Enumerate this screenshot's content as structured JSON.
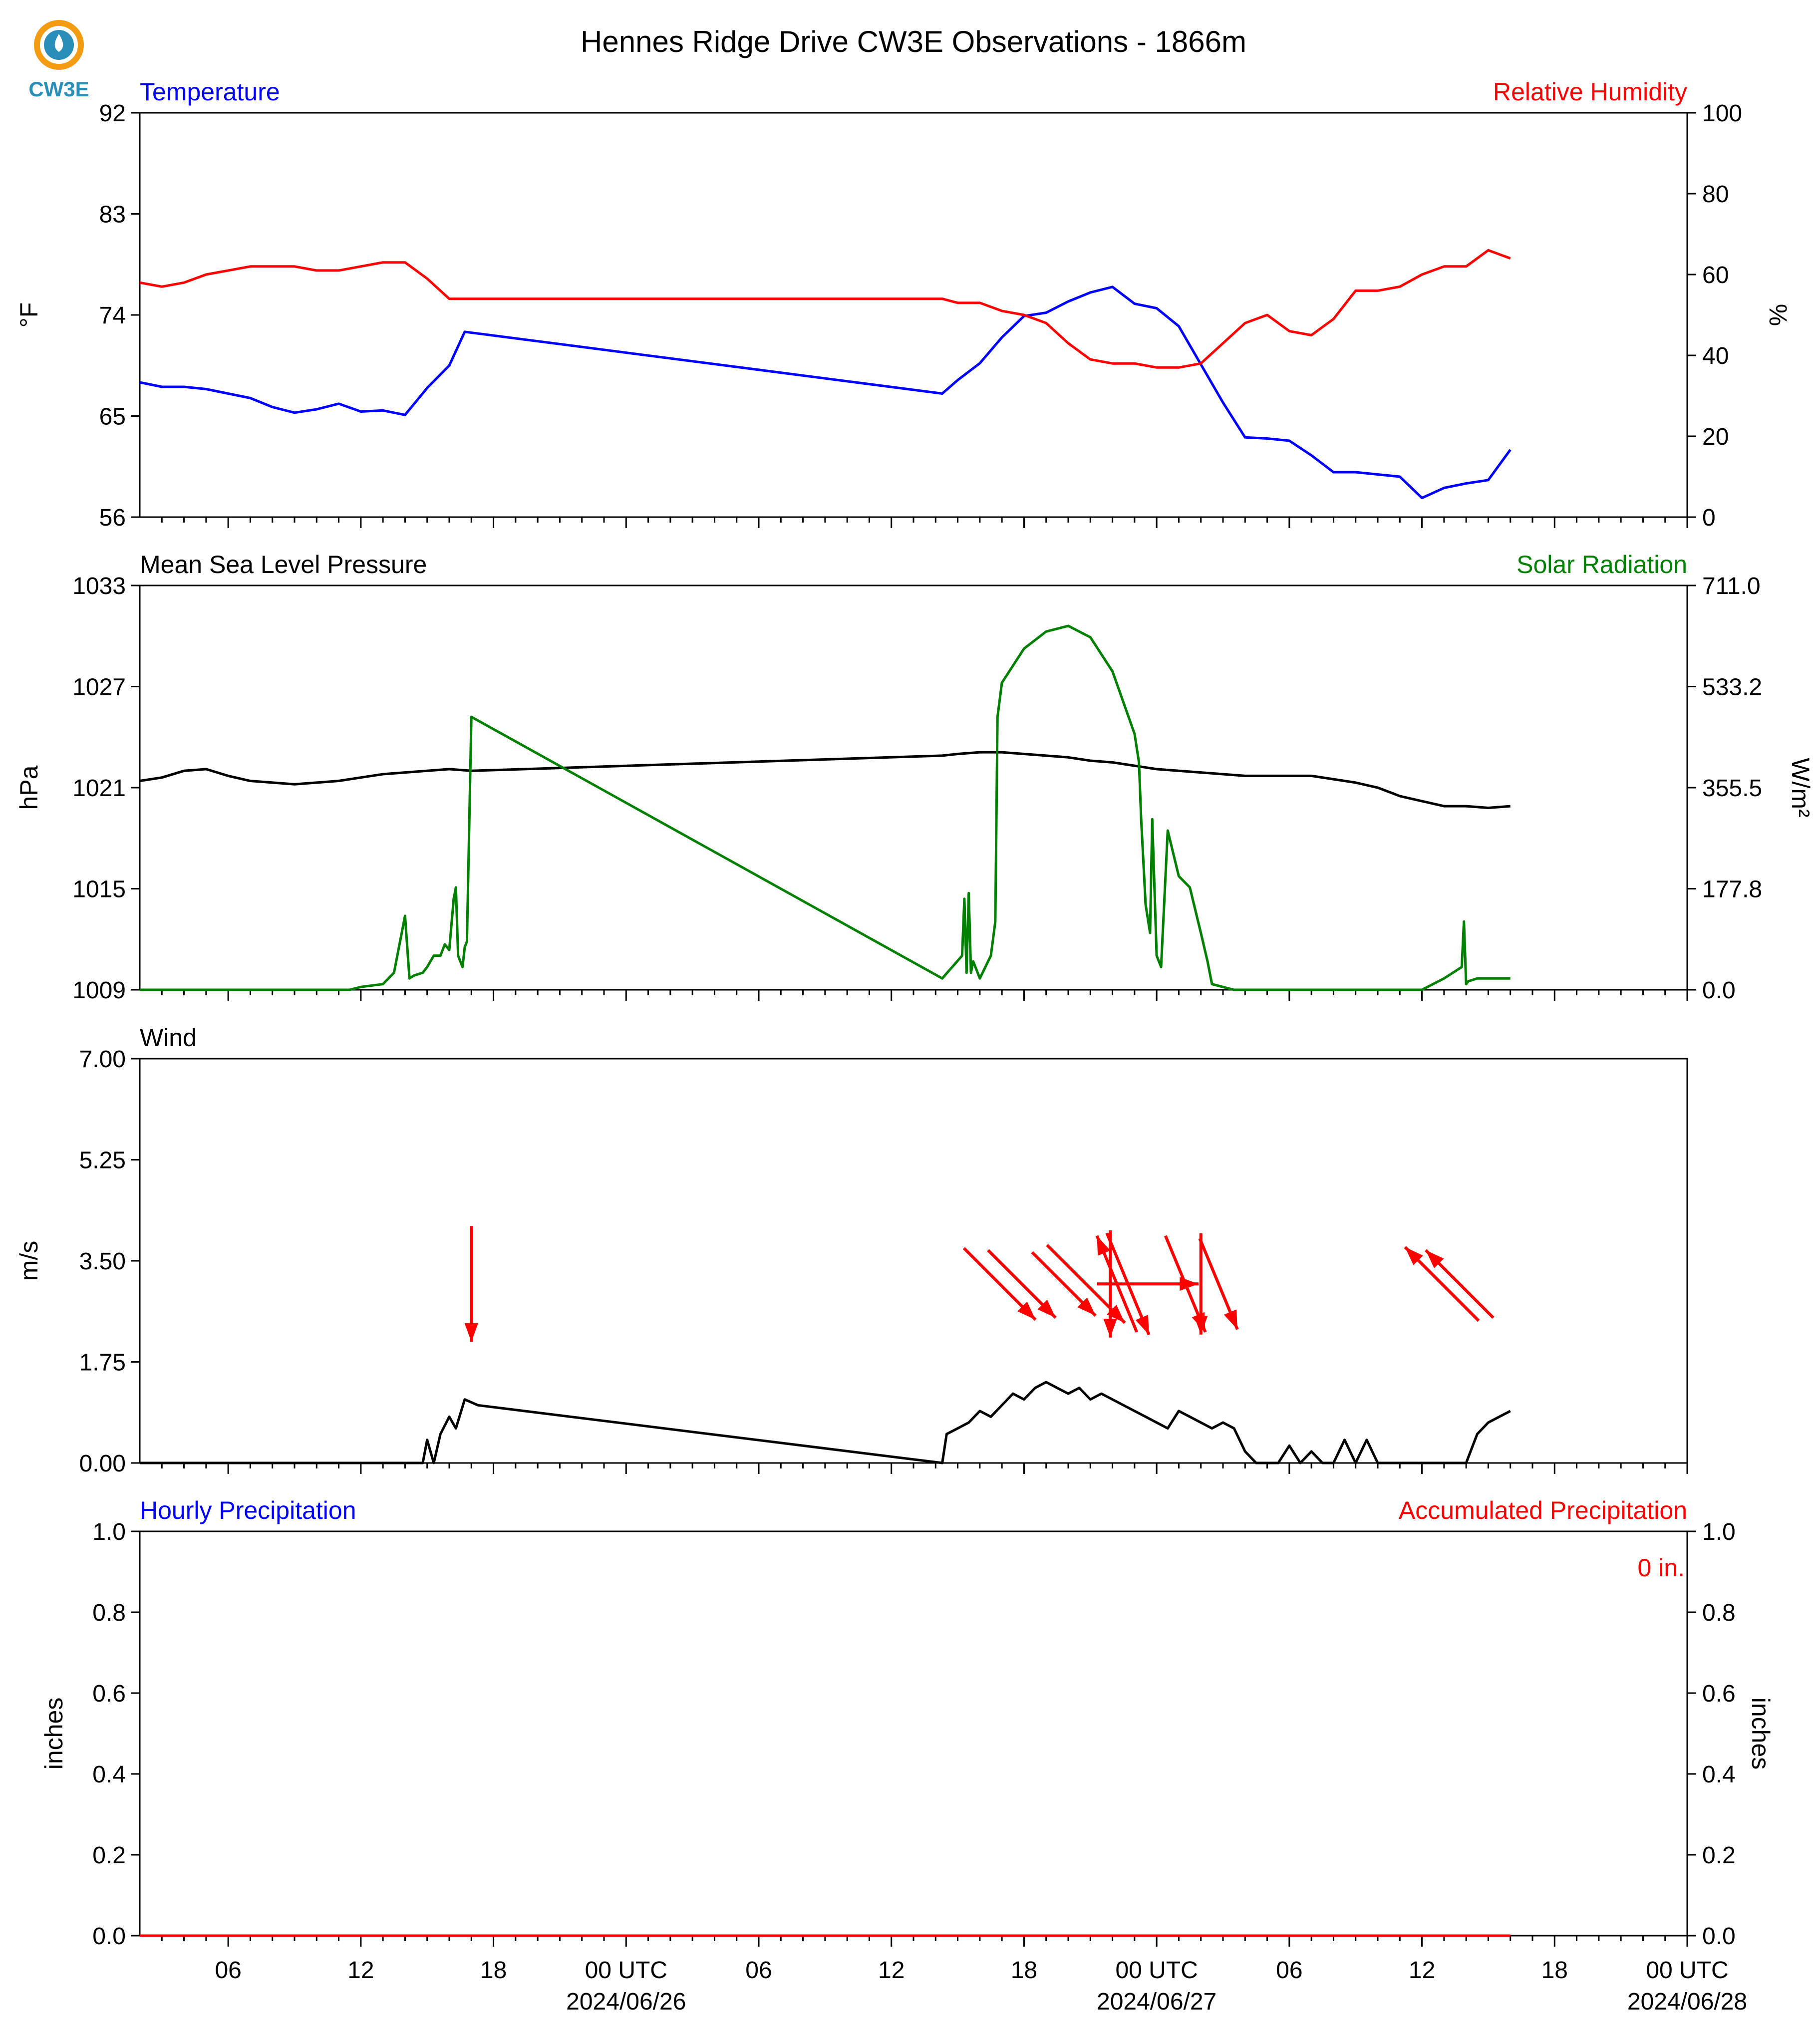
{
  "title": "Hennes Ridge Drive CW3E Observations - 1866m",
  "logo": {
    "text": "CW3E",
    "color": "#2a8fb8",
    "accent": "#f39c12"
  },
  "colors": {
    "blue": "#0000ff",
    "red": "#ff0000",
    "green": "#008000",
    "black": "#000000"
  },
  "x_axis": {
    "unit": "hours since 2024/06/25 00 UTC",
    "range": [
      2,
      72
    ],
    "hour_ticks": [
      {
        "h": 6,
        "label": "06"
      },
      {
        "h": 12,
        "label": "12"
      },
      {
        "h": 18,
        "label": "18"
      },
      {
        "h": 24,
        "label": "00 UTC"
      },
      {
        "h": 30,
        "label": "06"
      },
      {
        "h": 36,
        "label": "12"
      },
      {
        "h": 42,
        "label": "18"
      },
      {
        "h": 48,
        "label": "00 UTC"
      },
      {
        "h": 54,
        "label": "06"
      },
      {
        "h": 60,
        "label": "12"
      },
      {
        "h": 66,
        "label": "18"
      },
      {
        "h": 72,
        "label": "00 UTC"
      }
    ],
    "date_labels": [
      {
        "h": 24,
        "label": "2024/06/26"
      },
      {
        "h": 48,
        "label": "2024/06/27"
      },
      {
        "h": 72,
        "label": "2024/06/28"
      }
    ]
  },
  "panels": [
    {
      "left_title": "Temperature",
      "left_title_color": "#0000ff",
      "right_title": "Relative Humidity",
      "right_title_color": "#ff0000",
      "left_unit": "°F",
      "right_unit": "%",
      "left_ticks": [
        "56",
        "65",
        "74",
        "83",
        "92"
      ],
      "right_ticks": [
        "0",
        "20",
        "40",
        "60",
        "80",
        "100"
      ]
    },
    {
      "left_title": "Mean Sea Level Pressure",
      "left_title_color": "#000000",
      "right_title": "Solar Radiation",
      "right_title_color": "#008000",
      "left_unit": "hPa",
      "right_unit": "W/m²",
      "left_ticks": [
        "1009",
        "1015",
        "1021",
        "1027",
        "1033"
      ],
      "right_ticks": [
        "0.0",
        "177.8",
        "355.5",
        "533.2",
        "711.0"
      ]
    },
    {
      "left_title": "Wind",
      "left_title_color": "#000000",
      "right_title": "",
      "right_title_color": "#000000",
      "left_unit": "m/s",
      "right_unit": "",
      "left_ticks": [
        "0.00",
        "1.75",
        "3.50",
        "5.25",
        "7.00"
      ],
      "right_ticks": []
    },
    {
      "left_title": "Hourly Precipitation",
      "left_title_color": "#0000ff",
      "right_title": "Accumulated Precipitation",
      "right_title_color": "#ff0000",
      "left_unit": "inches",
      "right_unit": "inches",
      "left_ticks": [
        "0.0",
        "0.2",
        "0.4",
        "0.6",
        "0.8",
        "1.0"
      ],
      "right_ticks": [
        "0.0",
        "0.2",
        "0.4",
        "0.6",
        "0.8",
        "1.0"
      ],
      "annotation": "0 in."
    }
  ],
  "chart_data": [
    {
      "type": "line",
      "title": "Temperature / Relative Humidity",
      "x_unit": "hours since 2024/06/25 00 UTC",
      "series": [
        {
          "name": "Temperature",
          "axis": "left",
          "unit": "°F",
          "color": "#0000ff",
          "x": [
            2,
            3,
            4,
            5,
            6,
            7,
            8,
            9,
            10,
            11,
            12,
            13,
            14,
            15,
            16,
            16.7,
            17.5,
            38.3,
            39,
            40,
            41,
            42,
            43,
            44,
            45,
            46,
            47,
            48,
            49,
            50,
            51,
            52,
            53,
            54,
            55,
            56,
            57,
            58,
            59,
            60,
            61,
            62,
            63,
            64
          ],
          "y": [
            68,
            67.6,
            67.6,
            67.4,
            67,
            66.6,
            65.8,
            65.3,
            65.6,
            66.1,
            65.4,
            65.5,
            65.1,
            67.5,
            69.5,
            72.5,
            72.3,
            67,
            68.2,
            69.7,
            72,
            73.9,
            74.2,
            75.2,
            76,
            76.5,
            75,
            74.6,
            73,
            69.6,
            66.2,
            63.1,
            63,
            62.8,
            61.5,
            60,
            60,
            59.8,
            59.6,
            57.7,
            58.6,
            59,
            59.3,
            62
          ]
        },
        {
          "name": "Relative Humidity",
          "axis": "right",
          "unit": "%",
          "color": "#ff0000",
          "x": [
            2,
            3,
            4,
            5,
            6,
            7,
            8,
            9,
            10,
            11,
            12,
            13,
            14,
            15,
            16,
            16.7,
            17.5,
            38.3,
            39,
            40,
            41,
            42,
            43,
            44,
            45,
            46,
            47,
            48,
            49,
            50,
            51,
            52,
            53,
            54,
            55,
            56,
            57,
            58,
            59,
            60,
            61,
            62,
            63,
            64
          ],
          "y": [
            58,
            57,
            58,
            60,
            61,
            62,
            62,
            62,
            61,
            61,
            62,
            63,
            63,
            59,
            54,
            54,
            54,
            54,
            53,
            53,
            51,
            50,
            48,
            43,
            39,
            38,
            38,
            37,
            37,
            38,
            43,
            48,
            50,
            46,
            45,
            49,
            56,
            56,
            57,
            60,
            62,
            62,
            66,
            64
          ]
        }
      ],
      "ylim_left": [
        56,
        92
      ],
      "ylim_right": [
        0,
        100
      ]
    },
    {
      "type": "line",
      "title": "Mean Sea Level Pressure / Solar Radiation",
      "x_unit": "hours since 2024/06/25 00 UTC",
      "series": [
        {
          "name": "Mean Sea Level Pressure",
          "axis": "left",
          "unit": "hPa",
          "color": "#000000",
          "x": [
            2,
            3,
            4,
            5,
            6,
            7,
            8,
            9,
            10,
            11,
            12,
            13,
            14,
            15,
            16,
            17,
            38.3,
            39,
            40,
            41,
            42,
            43,
            44,
            45,
            46,
            47,
            48,
            49,
            50,
            51,
            52,
            53,
            54,
            55,
            56,
            57,
            58,
            59,
            60,
            61,
            62,
            63,
            64
          ],
          "y": [
            1021.4,
            1021.6,
            1022.0,
            1022.1,
            1021.7,
            1021.4,
            1021.3,
            1021.2,
            1021.3,
            1021.4,
            1021.6,
            1021.8,
            1021.9,
            1022.0,
            1022.1,
            1022.0,
            1022.9,
            1023.0,
            1023.1,
            1023.1,
            1023.0,
            1022.9,
            1022.8,
            1022.6,
            1022.5,
            1022.3,
            1022.1,
            1022.0,
            1021.9,
            1021.8,
            1021.7,
            1021.7,
            1021.7,
            1021.7,
            1021.5,
            1021.3,
            1021.0,
            1020.5,
            1020.2,
            1019.9,
            1019.9,
            1019.8,
            1019.9
          ]
        },
        {
          "name": "Solar Radiation",
          "axis": "right",
          "unit": "W/m²",
          "color": "#008000",
          "x": [
            2,
            11.5,
            12,
            13,
            13.5,
            14,
            14.2,
            14.4,
            14.8,
            15,
            15.3,
            15.6,
            15.8,
            16,
            16.2,
            16.3,
            16.4,
            16.6,
            16.7,
            16.8,
            17.0,
            38.3,
            39.2,
            39.3,
            39.4,
            39.5,
            39.6,
            39.7,
            40.0,
            40.5,
            40.7,
            40.8,
            41,
            42,
            43,
            44,
            45,
            46,
            47,
            47.2,
            47.3,
            47.5,
            47.7,
            47.8,
            48.0,
            48.2,
            48.5,
            49,
            49.5,
            50,
            50.3,
            50.5,
            51,
            51.5,
            52,
            60,
            61,
            61.8,
            61.9,
            62.0,
            62.1,
            62.5,
            63,
            64
          ],
          "y": [
            0,
            0,
            5,
            10,
            30,
            130,
            20,
            25,
            30,
            40,
            60,
            60,
            80,
            70,
            160,
            180,
            60,
            40,
            75,
            85,
            480,
            20,
            60,
            160,
            30,
            170,
            30,
            50,
            20,
            60,
            120,
            480,
            540,
            600,
            630,
            640,
            620,
            560,
            450,
            400,
            300,
            150,
            100,
            300,
            60,
            40,
            280,
            200,
            180,
            100,
            50,
            10,
            5,
            0,
            0,
            0,
            20,
            40,
            120,
            10,
            15,
            20,
            20,
            20
          ]
        }
      ],
      "ylim_left": [
        1009,
        1033
      ],
      "ylim_right": [
        0,
        711
      ]
    },
    {
      "type": "line",
      "title": "Wind",
      "x_unit": "hours since 2024/06/25 00 UTC",
      "series": [
        {
          "name": "Wind Speed",
          "axis": "left",
          "unit": "m/s",
          "color": "#000000",
          "x": [
            2,
            14.8,
            15,
            15.3,
            15.6,
            16,
            16.3,
            16.7,
            17.3,
            38.3,
            38.5,
            39,
            39.5,
            40,
            40.5,
            41,
            41.5,
            42,
            42.5,
            43,
            43.5,
            44,
            44.5,
            45,
            45.5,
            46,
            46.5,
            47,
            47.5,
            48,
            48.5,
            49,
            49.5,
            50,
            50.5,
            51,
            51.5,
            52,
            52.5,
            53,
            53.5,
            54,
            54.5,
            55,
            55.5,
            56,
            56.5,
            57,
            57.5,
            58,
            58.5,
            59,
            59.5,
            60,
            60.5,
            61,
            61.5,
            62,
            62.5,
            63,
            63.5,
            64
          ],
          "y": [
            0,
            0,
            0.4,
            0,
            0.5,
            0.8,
            0.6,
            1.1,
            1.0,
            0,
            0.5,
            0.6,
            0.7,
            0.9,
            0.8,
            1.0,
            1.2,
            1.1,
            1.3,
            1.4,
            1.3,
            1.2,
            1.3,
            1.1,
            1.2,
            1.1,
            1.0,
            0.9,
            0.8,
            0.7,
            0.6,
            0.9,
            0.8,
            0.7,
            0.6,
            0.7,
            0.6,
            0.2,
            0,
            0,
            0,
            0.3,
            0,
            0.2,
            0,
            0,
            0.4,
            0,
            0.4,
            0,
            0,
            0,
            0,
            0,
            0,
            0,
            0,
            0,
            0.5,
            0.7,
            0.8,
            0.9
          ]
        }
      ],
      "wind_vectors": [
        {
          "x": 17.0,
          "speed": 4.0,
          "direction": "N"
        },
        {
          "x": 40.9,
          "speed": 3.5,
          "direction": "NW"
        },
        {
          "x": 41.9,
          "speed": 3.3,
          "direction": "NW"
        },
        {
          "x": 43.8,
          "speed": 3.1,
          "direction": "NW"
        },
        {
          "x": 44.8,
          "speed": 3.8,
          "direction": "NW"
        },
        {
          "x": 45.9,
          "speed": 3.7,
          "direction": "N"
        },
        {
          "x": 46.2,
          "speed": 3.6,
          "direction": "SSE"
        },
        {
          "x": 46.7,
          "speed": 3.8,
          "direction": "NNW"
        },
        {
          "x": 47.6,
          "speed": 3.5,
          "direction": "W"
        },
        {
          "x": 49.3,
          "speed": 3.6,
          "direction": "NNW"
        },
        {
          "x": 50.0,
          "speed": 3.5,
          "direction": "N"
        },
        {
          "x": 50.8,
          "speed": 3.4,
          "direction": "NNW"
        },
        {
          "x": 60.9,
          "speed": 3.6,
          "direction": "SE"
        },
        {
          "x": 61.7,
          "speed": 3.3,
          "direction": "SE"
        }
      ],
      "ylim_left": [
        0,
        7
      ]
    },
    {
      "type": "line",
      "title": "Precipitation",
      "x_unit": "hours since 2024/06/25 00 UTC",
      "series": [
        {
          "name": "Hourly Precipitation",
          "axis": "left",
          "unit": "inches",
          "color": "#0000ff",
          "x": [
            2,
            64
          ],
          "y": [
            0,
            0
          ]
        },
        {
          "name": "Accumulated Precipitation",
          "axis": "right",
          "unit": "inches",
          "color": "#ff0000",
          "x": [
            2,
            64
          ],
          "y": [
            0,
            0
          ]
        }
      ],
      "ylim_left": [
        0,
        1
      ],
      "ylim_right": [
        0,
        1
      ]
    }
  ]
}
